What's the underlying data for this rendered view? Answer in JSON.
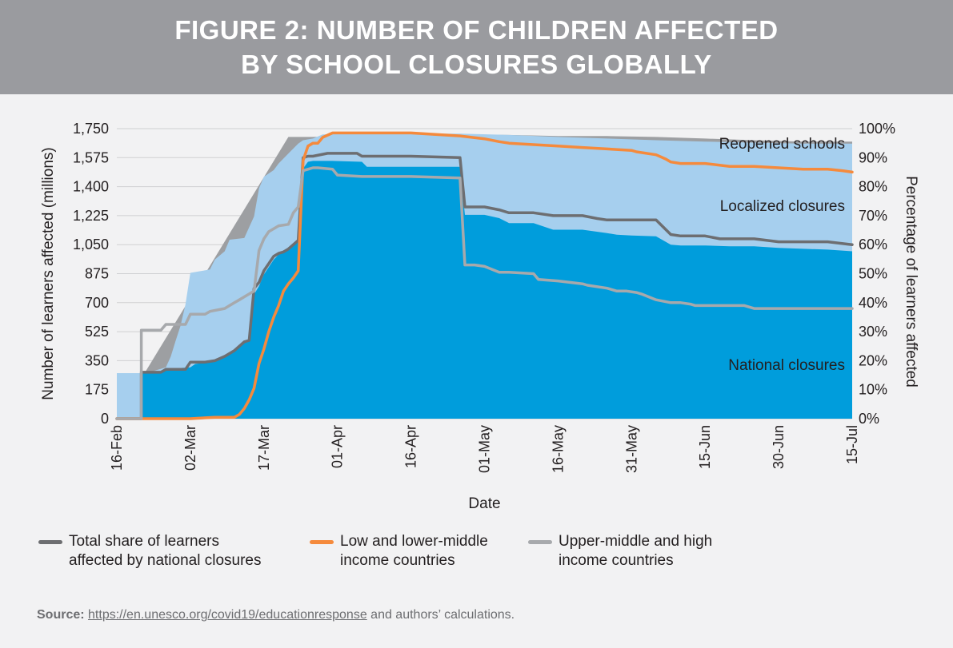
{
  "header": {
    "title_line1": "FIGURE 2: NUMBER OF CHILDREN AFFECTED",
    "title_line2": "BY SCHOOL CLOSURES GLOBALLY"
  },
  "chart_data": {
    "type": "area",
    "title": "FIGURE 2: NUMBER OF CHILDREN AFFECTED BY SCHOOL CLOSURES GLOBALLY",
    "xlabel": "Date",
    "ylabel": "Number of learners affected (millions)",
    "y2label": "Percentage of learners affected",
    "x_ticks": [
      "16-Feb",
      "02-Mar",
      "17-Mar",
      "01-Apr",
      "16-Apr",
      "01-May",
      "16-May",
      "31-May",
      "15-Jun",
      "30-Jun",
      "15-Jul"
    ],
    "y_ticks": [
      "0",
      "175",
      "350",
      "525",
      "700",
      "875",
      "1,050",
      "1,225",
      "1,400",
      "1,575",
      "1,750"
    ],
    "y2_ticks": [
      "0%",
      "10%",
      "20%",
      "30%",
      "40%",
      "50%",
      "60%",
      "70%",
      "80%",
      "90%",
      "100%"
    ],
    "ylim": [
      0,
      1750
    ],
    "y2lim": [
      0,
      100
    ],
    "day_offset_note": "x values are days since 16-Feb",
    "annotations": [
      "Reopened schools",
      "Localized closures",
      "National closures"
    ],
    "areas": [
      {
        "name": "Reopened schools",
        "color": "#9d9fa2",
        "points": [
          [
            0,
            0
          ],
          [
            35,
            1700
          ],
          [
            40,
            1700
          ],
          [
            60,
            1715
          ],
          [
            70,
            1715
          ],
          [
            80,
            1712
          ],
          [
            90,
            1705
          ],
          [
            100,
            1705
          ],
          [
            110,
            1700
          ],
          [
            120,
            1690
          ],
          [
            130,
            1680
          ],
          [
            140,
            1672
          ],
          [
            150,
            1672
          ]
        ]
      },
      {
        "name": "Localized closures",
        "color": "#a6cfee",
        "points": [
          [
            0,
            0
          ],
          [
            0,
            275
          ],
          [
            6,
            275
          ],
          [
            10,
            310
          ],
          [
            11,
            375
          ],
          [
            12,
            470
          ],
          [
            13,
            560
          ],
          [
            14,
            690
          ],
          [
            15,
            880
          ],
          [
            17,
            890
          ],
          [
            19,
            900
          ],
          [
            20,
            960
          ],
          [
            22,
            1010
          ],
          [
            23,
            1080
          ],
          [
            26,
            1090
          ],
          [
            28,
            1220
          ],
          [
            29,
            1390
          ],
          [
            30,
            1460
          ],
          [
            32,
            1500
          ],
          [
            33,
            1540
          ],
          [
            35,
            1600
          ],
          [
            37,
            1660
          ],
          [
            38,
            1680
          ],
          [
            40,
            1690
          ],
          [
            42,
            1715
          ],
          [
            47,
            1720
          ],
          [
            50,
            1720
          ],
          [
            60,
            1720
          ],
          [
            70,
            1720
          ],
          [
            80,
            1712
          ],
          [
            90,
            1700
          ],
          [
            100,
            1690
          ],
          [
            110,
            1680
          ],
          [
            120,
            1672
          ],
          [
            130,
            1665
          ],
          [
            140,
            1660
          ],
          [
            150,
            1660
          ]
        ]
      },
      {
        "name": "National closures",
        "color": "#009ddc",
        "points": [
          [
            0,
            0
          ],
          [
            5,
            0
          ],
          [
            5,
            280
          ],
          [
            9,
            285
          ],
          [
            10,
            300
          ],
          [
            15,
            310
          ],
          [
            16,
            330
          ],
          [
            19,
            340
          ],
          [
            22,
            375
          ],
          [
            24,
            410
          ],
          [
            26,
            460
          ],
          [
            27,
            470
          ],
          [
            28,
            750
          ],
          [
            29,
            800
          ],
          [
            30,
            870
          ],
          [
            32,
            960
          ],
          [
            33,
            990
          ],
          [
            34,
            1010
          ],
          [
            36,
            1050
          ],
          [
            37,
            1080
          ],
          [
            38,
            1510
          ],
          [
            39,
            1550
          ],
          [
            40,
            1555
          ],
          [
            43,
            1555
          ],
          [
            44,
            1555
          ],
          [
            50,
            1550
          ],
          [
            51,
            1520
          ],
          [
            54,
            1520
          ],
          [
            60,
            1520
          ],
          [
            70,
            1520
          ],
          [
            71,
            1230
          ],
          [
            73,
            1230
          ],
          [
            75,
            1230
          ],
          [
            78,
            1210
          ],
          [
            80,
            1180
          ],
          [
            85,
            1180
          ],
          [
            89,
            1140
          ],
          [
            95,
            1140
          ],
          [
            100,
            1120
          ],
          [
            102,
            1110
          ],
          [
            105,
            1105
          ],
          [
            110,
            1100
          ],
          [
            113,
            1050
          ],
          [
            115,
            1045
          ],
          [
            120,
            1045
          ],
          [
            125,
            1040
          ],
          [
            130,
            1040
          ],
          [
            135,
            1030
          ],
          [
            140,
            1025
          ],
          [
            145,
            1020
          ],
          [
            150,
            1010
          ]
        ]
      }
    ],
    "series": [
      {
        "name": "Total share of learners affected by national closures",
        "color": "#6d6e71",
        "axis": "right_percent",
        "points": [
          [
            0,
            0
          ],
          [
            5,
            0
          ],
          [
            5,
            16
          ],
          [
            9,
            16
          ],
          [
            10,
            17
          ],
          [
            14,
            17
          ],
          [
            15,
            19.5
          ],
          [
            18,
            19.5
          ],
          [
            20,
            20
          ],
          [
            22,
            21.5
          ],
          [
            24,
            23.5
          ],
          [
            26,
            26.5
          ],
          [
            27,
            27
          ],
          [
            28,
            45
          ],
          [
            29,
            47
          ],
          [
            30,
            51
          ],
          [
            32,
            56
          ],
          [
            33,
            57
          ],
          [
            34,
            57.5
          ],
          [
            35,
            58.5
          ],
          [
            36,
            60
          ],
          [
            37,
            61.5
          ],
          [
            38,
            90
          ],
          [
            39,
            90.5
          ],
          [
            40,
            90.5
          ],
          [
            43,
            91.5
          ],
          [
            44,
            91.5
          ],
          [
            49,
            91.5
          ],
          [
            50,
            90.5
          ],
          [
            52,
            90.5
          ],
          [
            60,
            90.5
          ],
          [
            70,
            90
          ],
          [
            71,
            73
          ],
          [
            73,
            73
          ],
          [
            75,
            73
          ],
          [
            78,
            72
          ],
          [
            80,
            71
          ],
          [
            85,
            71
          ],
          [
            89,
            70
          ],
          [
            95,
            70
          ],
          [
            98,
            69
          ],
          [
            100,
            68.5
          ],
          [
            105,
            68.5
          ],
          [
            110,
            68.5
          ],
          [
            113,
            63.5
          ],
          [
            115,
            63
          ],
          [
            120,
            63
          ],
          [
            123,
            62
          ],
          [
            130,
            62
          ],
          [
            135,
            61
          ],
          [
            140,
            61
          ],
          [
            145,
            61
          ],
          [
            150,
            60
          ]
        ]
      },
      {
        "name": "Low and lower-middle income countries",
        "color": "#f58a3c",
        "axis": "right_percent",
        "points": [
          [
            0,
            0
          ],
          [
            15,
            0
          ],
          [
            20,
            0.5
          ],
          [
            24,
            0.5
          ],
          [
            25,
            1.5
          ],
          [
            26,
            3.5
          ],
          [
            27,
            6.5
          ],
          [
            28,
            10.5
          ],
          [
            29,
            19
          ],
          [
            30,
            24
          ],
          [
            31,
            30
          ],
          [
            32,
            35
          ],
          [
            33,
            39
          ],
          [
            34,
            44
          ],
          [
            35,
            46.5
          ],
          [
            36,
            48.5
          ],
          [
            37,
            51
          ],
          [
            38,
            89
          ],
          [
            39,
            94
          ],
          [
            40,
            95
          ],
          [
            41,
            95
          ],
          [
            42,
            97
          ],
          [
            44,
            98.5
          ],
          [
            47,
            98.5
          ],
          [
            50,
            98.5
          ],
          [
            60,
            98.5
          ],
          [
            65,
            98
          ],
          [
            70,
            97.5
          ],
          [
            75,
            96.5
          ],
          [
            78,
            95.5
          ],
          [
            80,
            95
          ],
          [
            90,
            94
          ],
          [
            95,
            93.5
          ],
          [
            100,
            93
          ],
          [
            105,
            92.5
          ],
          [
            106,
            92
          ],
          [
            110,
            91
          ],
          [
            112,
            89.5
          ],
          [
            113,
            88.5
          ],
          [
            115,
            88
          ],
          [
            120,
            88
          ],
          [
            125,
            87
          ],
          [
            130,
            87
          ],
          [
            135,
            86.5
          ],
          [
            140,
            86
          ],
          [
            145,
            86
          ],
          [
            148,
            85.5
          ],
          [
            150,
            85
          ]
        ]
      },
      {
        "name": "Upper-middle and high income countries",
        "color": "#a7a9ac",
        "axis": "right_percent",
        "points": [
          [
            0,
            0
          ],
          [
            5,
            0
          ],
          [
            5,
            30.5
          ],
          [
            9,
            30.5
          ],
          [
            10,
            32.5
          ],
          [
            14,
            32.5
          ],
          [
            15,
            36
          ],
          [
            18,
            36
          ],
          [
            19,
            37
          ],
          [
            22,
            38
          ],
          [
            23,
            39
          ],
          [
            24,
            40
          ],
          [
            25,
            41
          ],
          [
            26,
            42
          ],
          [
            27,
            43
          ],
          [
            28,
            44
          ],
          [
            29,
            58
          ],
          [
            30,
            62
          ],
          [
            31,
            64.5
          ],
          [
            32,
            65.5
          ],
          [
            33,
            66.5
          ],
          [
            35,
            67
          ],
          [
            36,
            71
          ],
          [
            37,
            73
          ],
          [
            38,
            85.5
          ],
          [
            39,
            86
          ],
          [
            40,
            86.5
          ],
          [
            41,
            86.5
          ],
          [
            44,
            86
          ],
          [
            45,
            84
          ],
          [
            50,
            83.5
          ],
          [
            60,
            83.5
          ],
          [
            70,
            83
          ],
          [
            71,
            53
          ],
          [
            73,
            53
          ],
          [
            75,
            52.5
          ],
          [
            78,
            50.5
          ],
          [
            80,
            50.5
          ],
          [
            85,
            50
          ],
          [
            86,
            48
          ],
          [
            90,
            47.5
          ],
          [
            95,
            46.5
          ],
          [
            96,
            46
          ],
          [
            100,
            45
          ],
          [
            102,
            44
          ],
          [
            104,
            44
          ],
          [
            106,
            43.5
          ],
          [
            107,
            43
          ],
          [
            110,
            41
          ],
          [
            113,
            40
          ],
          [
            115,
            40
          ],
          [
            117,
            39.5
          ],
          [
            118,
            39
          ],
          [
            120,
            39
          ],
          [
            125,
            39
          ],
          [
            128,
            39
          ],
          [
            130,
            38
          ],
          [
            135,
            38
          ],
          [
            140,
            38
          ],
          [
            145,
            38
          ],
          [
            150,
            38
          ]
        ]
      }
    ],
    "legend_position": "bottom"
  },
  "legend": {
    "items": [
      {
        "label": "Total share of learners\naffected by national closures",
        "color": "#6d6e71"
      },
      {
        "label": "Low and lower-middle\nincome countries",
        "color": "#f58a3c"
      },
      {
        "label": "Upper-middle and high\nincome countries",
        "color": "#a7a9ac"
      }
    ]
  },
  "source": {
    "prefix": "Source:",
    "link": "https://en.unesco.org/covid19/educationresponse",
    "suffix": " and authors’ calculations."
  }
}
